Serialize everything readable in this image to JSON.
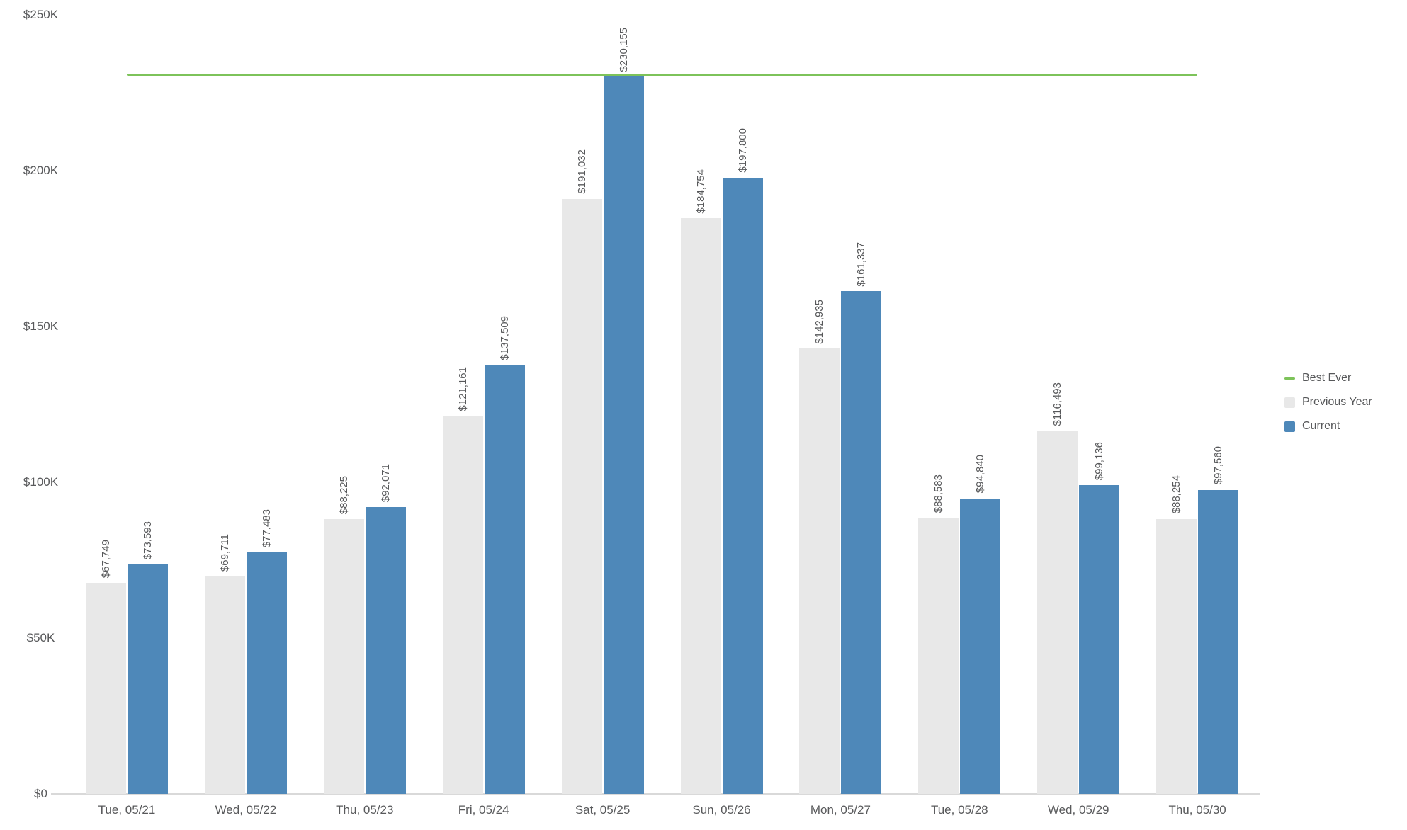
{
  "chart_data": {
    "type": "bar",
    "title": "",
    "categories": [
      "Tue, 05/21",
      "Wed, 05/22",
      "Thu, 05/23",
      "Fri, 05/24",
      "Sat, 05/25",
      "Sun, 05/26",
      "Mon, 05/27",
      "Tue, 05/28",
      "Wed, 05/29",
      "Thu, 05/30"
    ],
    "series": [
      {
        "name": "Previous Year",
        "color": "#e8e8e8",
        "values": [
          67749,
          69711,
          88225,
          121161,
          191032,
          184754,
          142935,
          88583,
          116493,
          88254
        ],
        "labels": [
          "$67,749",
          "$69,711",
          "$88,225",
          "$121,161",
          "$191,032",
          "$184,754",
          "$142,935",
          "$88,583",
          "$116,493",
          "$88,254"
        ]
      },
      {
        "name": "Current",
        "color": "#4e88b9",
        "values": [
          73593,
          77483,
          92071,
          137509,
          230155,
          197800,
          161337,
          94840,
          99136,
          97560
        ],
        "labels": [
          "$73,593",
          "$77,483",
          "$92,071",
          "$137,509",
          "$230,155",
          "$197,800",
          "$161,337",
          "$94,840",
          "$99,136",
          "$97,560"
        ]
      }
    ],
    "reference_line": {
      "name": "Best Ever",
      "value": 231000,
      "color": "#7dc35a"
    },
    "y_axis": {
      "min": 0,
      "max": 250000,
      "tick_values": [
        250000,
        200000,
        150000,
        100000,
        50000,
        0
      ],
      "tick_labels": [
        "$250K",
        "$200K",
        "$150K",
        "$100K",
        "$50K",
        "$0"
      ]
    },
    "x_axis": {
      "label": "",
      "grid": "off"
    },
    "bar_label_rotation": -90,
    "legend": {
      "position": "right",
      "items": [
        {
          "label": "Best Ever",
          "swatch": "line",
          "color": "#7dc35a"
        },
        {
          "label": "Previous Year",
          "swatch": "square",
          "color": "#e8e8e8"
        },
        {
          "label": "Current",
          "swatch": "square",
          "color": "#4e88b9"
        }
      ]
    }
  }
}
